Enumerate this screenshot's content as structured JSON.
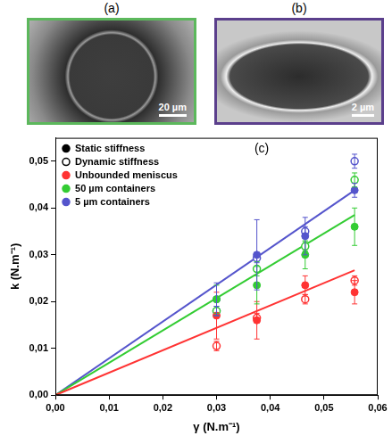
{
  "chart_data": {
    "type": "scatter",
    "title": "(c)",
    "x_label": "γ (N.m⁻¹)",
    "y_label": "k (N.m⁻¹)",
    "xlim": [
      0,
      0.06
    ],
    "xticks": [
      {
        "value": 0,
        "label": "0,00"
      },
      {
        "value": 0.01,
        "label": "0,01"
      },
      {
        "value": 0.02,
        "label": "0,02"
      },
      {
        "value": 0.03,
        "label": "0,03"
      },
      {
        "value": 0.04,
        "label": "0,04"
      },
      {
        "value": 0.05,
        "label": "0,05"
      },
      {
        "value": 0.06,
        "label": "0,06"
      }
    ],
    "ylim": [
      0,
      0.055
    ],
    "yticks": [
      {
        "value": 0,
        "label": "0,00"
      },
      {
        "value": 0.01,
        "label": "0,01"
      },
      {
        "value": 0.02,
        "label": "0,02"
      },
      {
        "value": 0.03,
        "label": "0,03"
      },
      {
        "value": 0.04,
        "label": "0,04"
      },
      {
        "value": 0.05,
        "label": "0,05"
      }
    ],
    "grid": false,
    "legend": "upper left",
    "x": [
      0.03,
      0.0375,
      0.0465,
      0.0557
    ],
    "marker_legend": [
      {
        "name": "Static stiffness",
        "marker": "filled"
      },
      {
        "name": "Dynamic stiffness",
        "marker": "open"
      }
    ],
    "series": [
      {
        "name": "Unbounded meniscus",
        "color": "#ff3333",
        "values": [
          0.017,
          0.016,
          0.0235,
          0.022
        ],
        "errors": [
          0.005,
          0.004,
          0.002,
          0.0025
        ],
        "dynamic_values": [
          0.0105,
          0.0165,
          0.0205,
          0.0245
        ],
        "dynamic_errors": [
          0.001,
          0.001,
          0.001,
          0.001
        ],
        "fit_x": [
          0,
          0.0557
        ],
        "fit": [
          0,
          0.0267
        ]
      },
      {
        "name": "50 µm containers",
        "color": "#33cc33",
        "values": [
          0.0205,
          0.0235,
          0.03,
          0.036
        ],
        "errors": [
          0.003,
          0.004,
          0.003,
          0.004
        ],
        "dynamic_values": [
          0.018,
          0.027,
          0.0318,
          0.046
        ],
        "dynamic_errors": [
          0.001,
          0.0015,
          0.001,
          0.0015
        ],
        "fit_x": [
          0,
          0.0557
        ],
        "fit": [
          0,
          0.0385
        ]
      },
      {
        "name": "5 µm containers",
        "color": "#5555cc",
        "values": [
          0.0205,
          0.03,
          0.034,
          0.0438
        ],
        "errors": [
          0.0035,
          0.0075,
          0.004,
          0.0015
        ],
        "dynamic_values": [
          0.018,
          0.0293,
          0.035,
          0.05
        ],
        "dynamic_errors": [
          0.001,
          0.001,
          0.001,
          0.0015
        ],
        "fit_x": [
          0,
          0.0557
        ],
        "fit": [
          0,
          0.0438
        ]
      }
    ]
  },
  "panels": [
    {
      "label": "(a)",
      "scale_bar": "20 µm",
      "color": "#5cb85c"
    },
    {
      "label": "(b)",
      "scale_bar": "2 µm",
      "color": "#5b3f8c"
    }
  ]
}
